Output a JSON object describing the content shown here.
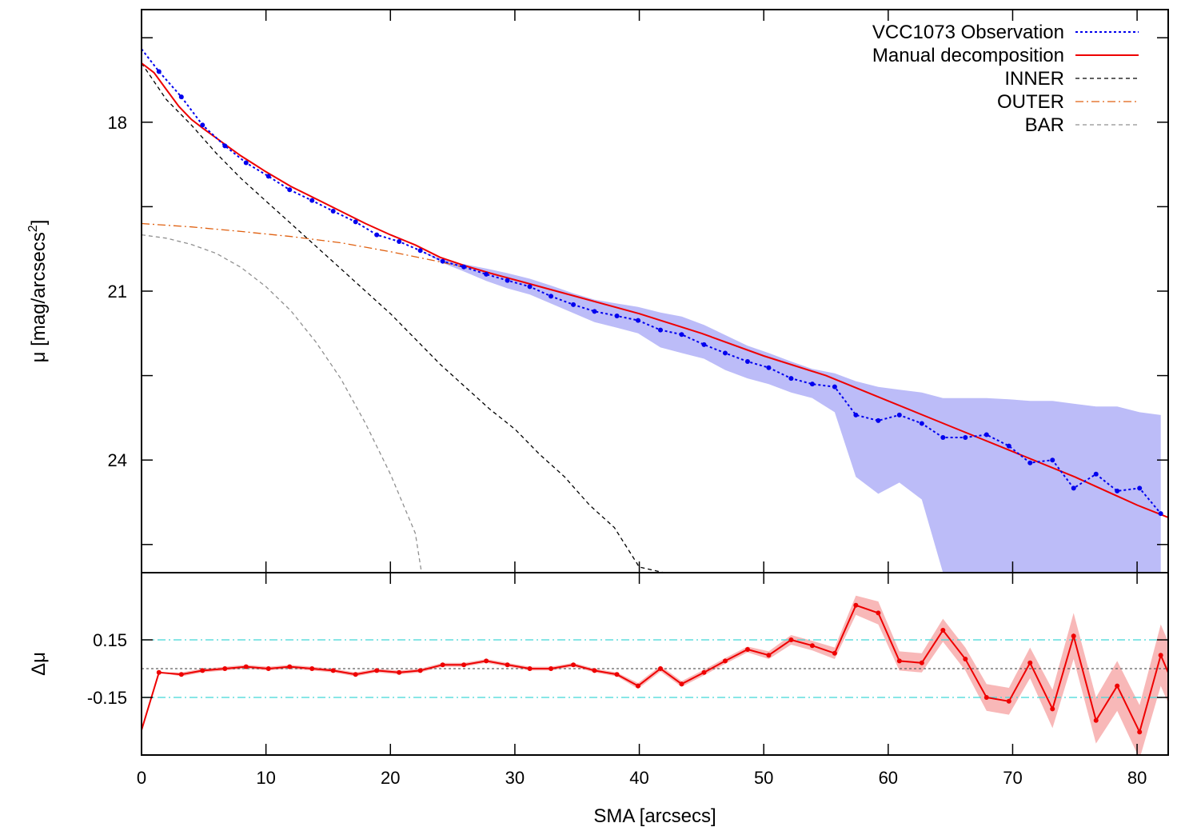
{
  "chart_data": [
    {
      "type": "line",
      "panel": "profile",
      "ylabel": "μ [mag/arcsecs",
      "ylabel_sup": "2",
      "ylabel_close": "]",
      "xlim": [
        0,
        82.5
      ],
      "ylim": [
        26.0,
        16.0
      ],
      "y_inverted": true,
      "yticks": [
        18,
        21,
        24
      ],
      "ytick_labels": [
        "18",
        "21",
        "24"
      ],
      "legend_position": "top-right",
      "series": [
        {
          "name": "VCC1073 Observation",
          "style": "dotted",
          "color": "#0000ee",
          "markers": true,
          "x": [
            0.0,
            1.4,
            3.2,
            4.9,
            6.7,
            8.4,
            10.2,
            11.9,
            13.7,
            15.4,
            17.2,
            18.9,
            20.7,
            22.4,
            24.2,
            25.9,
            27.7,
            29.4,
            31.2,
            32.9,
            34.7,
            36.4,
            38.2,
            39.9,
            41.7,
            43.4,
            45.2,
            46.9,
            48.7,
            50.4,
            52.2,
            53.9,
            55.7,
            57.4,
            59.2,
            60.9,
            62.7,
            64.4,
            66.2,
            67.9,
            69.7,
            71.4,
            73.2,
            74.9,
            76.7,
            78.4,
            80.2,
            81.9
          ],
          "y": [
            16.7,
            17.1,
            17.55,
            18.05,
            18.42,
            18.72,
            18.96,
            19.2,
            19.39,
            19.58,
            19.77,
            20.0,
            20.12,
            20.28,
            20.47,
            20.57,
            20.7,
            20.81,
            20.92,
            21.09,
            21.24,
            21.36,
            21.44,
            21.52,
            21.69,
            21.77,
            21.95,
            22.1,
            22.25,
            22.36,
            22.55,
            22.65,
            22.7,
            23.2,
            23.3,
            23.2,
            23.35,
            23.6,
            23.6,
            23.55,
            23.75,
            24.05,
            24.0,
            24.5,
            24.25,
            24.55,
            24.5,
            24.95
          ],
          "err_low": [
            16.7,
            17.1,
            17.55,
            18.05,
            18.42,
            18.72,
            18.96,
            19.2,
            19.39,
            19.58,
            19.77,
            20.0,
            20.12,
            20.28,
            20.5,
            20.65,
            20.82,
            20.95,
            21.06,
            21.22,
            21.39,
            21.55,
            21.65,
            21.75,
            22.0,
            22.1,
            22.2,
            22.4,
            22.55,
            22.65,
            22.8,
            22.9,
            23.15,
            24.3,
            24.6,
            24.4,
            24.7,
            26.0,
            26.0,
            26.0,
            26.0,
            26.0,
            26.0,
            26.0,
            26.0,
            26.0,
            26.0,
            26.0
          ],
          "err_high": [
            16.7,
            17.1,
            17.55,
            18.05,
            18.42,
            18.72,
            18.96,
            19.2,
            19.39,
            19.58,
            19.77,
            20.0,
            20.12,
            20.28,
            20.44,
            20.52,
            20.6,
            20.68,
            20.78,
            20.9,
            21.04,
            21.15,
            21.22,
            21.28,
            21.38,
            21.45,
            21.6,
            21.78,
            21.97,
            22.1,
            22.25,
            22.38,
            22.46,
            22.6,
            22.7,
            22.75,
            22.8,
            22.9,
            22.9,
            22.9,
            22.92,
            22.95,
            22.95,
            23.0,
            23.05,
            23.05,
            23.15,
            23.2
          ],
          "band_color": "#bcbcf8"
        },
        {
          "name": "Manual decomposition",
          "style": "solid",
          "color": "#ee0000",
          "x": [
            0,
            1,
            2,
            3,
            4,
            5,
            6,
            7,
            8,
            9,
            10,
            12,
            14,
            16,
            18,
            20,
            22,
            24,
            26,
            28,
            30,
            35,
            40,
            45,
            50,
            55,
            60,
            65,
            70,
            75,
            80,
            82.5
          ],
          "y": [
            16.95,
            17.12,
            17.42,
            17.72,
            17.95,
            18.12,
            18.28,
            18.44,
            18.6,
            18.74,
            18.88,
            19.14,
            19.36,
            19.58,
            19.8,
            20.0,
            20.18,
            20.4,
            20.55,
            20.68,
            20.8,
            21.1,
            21.4,
            21.75,
            22.15,
            22.5,
            22.95,
            23.4,
            23.85,
            24.3,
            24.8,
            25.02
          ]
        },
        {
          "name": "INNER",
          "style": "dashed",
          "color": "#000000",
          "x": [
            0,
            2,
            4,
            6,
            8,
            10,
            12,
            14,
            16,
            18,
            20,
            22,
            24,
            26,
            28,
            30,
            32,
            34,
            36,
            38,
            40,
            42
          ],
          "y": [
            16.95,
            17.6,
            18.05,
            18.55,
            19.0,
            19.4,
            19.8,
            20.2,
            20.6,
            21.0,
            21.4,
            21.85,
            22.3,
            22.7,
            23.1,
            23.45,
            23.9,
            24.3,
            24.8,
            25.2,
            25.9,
            26.0
          ]
        },
        {
          "name": "OUTER",
          "style": "dashdot",
          "color": "#e06010",
          "x": [
            0,
            4,
            8,
            12,
            16,
            20,
            24,
            26
          ],
          "y": [
            19.8,
            19.86,
            19.94,
            20.03,
            20.14,
            20.3,
            20.48,
            20.58
          ]
        },
        {
          "name": "BAR",
          "style": "dashed",
          "color": "#909090",
          "x": [
            0,
            2,
            4,
            6,
            8,
            10,
            12,
            14,
            16,
            18,
            20,
            22,
            22.5,
            23.0
          ],
          "y": [
            20.0,
            20.06,
            20.17,
            20.33,
            20.58,
            20.92,
            21.35,
            21.9,
            22.55,
            23.35,
            24.25,
            25.3,
            26.0,
            26.0
          ]
        }
      ]
    },
    {
      "type": "line",
      "panel": "residual",
      "xlabel": "SMA [arcsecs]",
      "ylabel": "Δμ",
      "xlim": [
        0,
        82.5
      ],
      "ylim": [
        -0.45,
        0.5
      ],
      "xticks": [
        0,
        10,
        20,
        30,
        40,
        50,
        60,
        70,
        80
      ],
      "xtick_labels": [
        "0",
        "10",
        "20",
        "30",
        "40",
        "50",
        "60",
        "70",
        "80"
      ],
      "yticks": [
        0.15,
        -0.15
      ],
      "ytick_labels": [
        "0.15",
        "-0.15"
      ],
      "reference_lines": [
        {
          "y": 0.15,
          "style": "dashdot",
          "color": "#40d8d8"
        },
        {
          "y": -0.15,
          "style": "dashdot",
          "color": "#40d8d8"
        },
        {
          "y": 0.0,
          "style": "dotted",
          "color": "#606060"
        }
      ],
      "series": [
        {
          "name": "",
          "style": "solid",
          "color": "#ee0000",
          "markers": true,
          "x": [
            0.0,
            1.4,
            3.2,
            4.9,
            6.7,
            8.4,
            10.2,
            11.9,
            13.7,
            15.4,
            17.2,
            18.9,
            20.7,
            22.4,
            24.2,
            25.9,
            27.7,
            29.4,
            31.2,
            32.9,
            34.7,
            36.4,
            38.2,
            39.9,
            41.7,
            43.4,
            45.2,
            46.9,
            48.7,
            50.4,
            52.2,
            53.9,
            55.7,
            57.4,
            59.2,
            60.9,
            62.7,
            64.4,
            66.2,
            67.9,
            69.7,
            71.4,
            73.2,
            74.9,
            76.7,
            78.4,
            80.2,
            81.9,
            82.5
          ],
          "y": [
            -0.32,
            -0.02,
            -0.03,
            -0.01,
            0.0,
            0.01,
            0.0,
            0.01,
            0.0,
            -0.01,
            -0.03,
            -0.01,
            -0.02,
            -0.01,
            0.02,
            0.02,
            0.04,
            0.02,
            0.0,
            0.0,
            0.02,
            -0.01,
            -0.03,
            -0.09,
            0.0,
            -0.08,
            -0.02,
            0.04,
            0.1,
            0.07,
            0.15,
            0.12,
            0.08,
            0.33,
            0.29,
            0.04,
            0.03,
            0.2,
            0.05,
            -0.15,
            -0.17,
            0.03,
            -0.21,
            0.17,
            -0.27,
            -0.09,
            -0.33,
            0.07,
            -0.02
          ],
          "band_halfwidth": [
            0.0,
            0.0,
            0.01,
            0.01,
            0.01,
            0.01,
            0.01,
            0.01,
            0.01,
            0.01,
            0.01,
            0.01,
            0.01,
            0.01,
            0.01,
            0.01,
            0.01,
            0.01,
            0.01,
            0.01,
            0.01,
            0.01,
            0.01,
            0.015,
            0.015,
            0.015,
            0.015,
            0.015,
            0.015,
            0.02,
            0.025,
            0.025,
            0.03,
            0.05,
            0.06,
            0.05,
            0.05,
            0.06,
            0.06,
            0.07,
            0.07,
            0.08,
            0.1,
            0.12,
            0.12,
            0.13,
            0.14,
            0.16,
            0.16
          ],
          "band_color": "#f8b8b8"
        }
      ]
    }
  ]
}
